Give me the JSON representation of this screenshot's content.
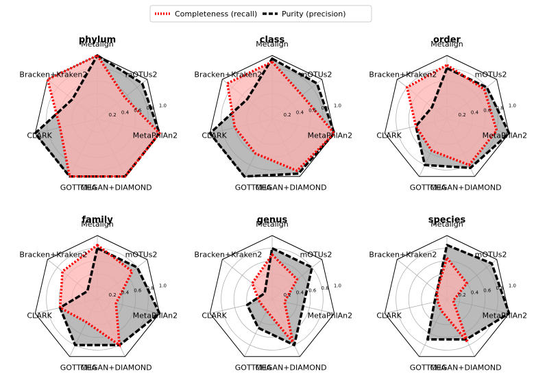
{
  "chart_data": {
    "type": "radar",
    "axes": [
      "Metalign",
      "mOTUs2",
      "MetaPhlAn2",
      "MEGAN+DIAMOND",
      "GOTTCHA",
      "CLARK",
      "Bracken+Kraken2"
    ],
    "radial_ticks": [
      "0.2",
      "0.4",
      "0.6",
      "0.8",
      "1.0"
    ],
    "rlim": [
      0,
      1.0
    ],
    "grid": true,
    "legend": {
      "placement": "top-center",
      "entries": [
        "Completeness (recall)",
        "Purity (precision)"
      ]
    },
    "colors": {
      "completeness": "#ff0000",
      "completeness_fill": "#ffb0b0",
      "purity": "#000000",
      "purity_fill": "#999999"
    },
    "subplots": [
      {
        "title": "phylum",
        "series": [
          {
            "name": "Completeness (recall)",
            "values": [
              1.0,
              0.55,
              1.0,
              1.0,
              1.0,
              0.6,
              1.0
            ]
          },
          {
            "name": "Purity (precision)",
            "values": [
              1.0,
              0.9,
              1.0,
              1.0,
              1.0,
              1.0,
              0.5
            ]
          }
        ]
      },
      {
        "title": "class",
        "series": [
          {
            "name": "Completeness (recall)",
            "values": [
              0.9,
              0.6,
              1.0,
              0.9,
              0.6,
              0.6,
              0.9
            ]
          },
          {
            "name": "Purity (precision)",
            "values": [
              0.95,
              0.9,
              1.0,
              0.95,
              1.0,
              1.0,
              0.5
            ]
          }
        ]
      },
      {
        "title": "order",
        "series": [
          {
            "name": "Completeness (recall)",
            "values": [
              0.85,
              0.75,
              0.8,
              0.8,
              0.55,
              0.5,
              0.8
            ]
          },
          {
            "name": "Purity (precision)",
            "values": [
              0.8,
              0.8,
              1.0,
              0.85,
              0.8,
              0.5,
              0.3
            ]
          }
        ]
      },
      {
        "title": "family",
        "series": [
          {
            "name": "Completeness (recall)",
            "values": [
              0.85,
              0.7,
              0.3,
              0.8,
              0.4,
              0.6,
              0.7
            ]
          },
          {
            "name": "Purity (precision)",
            "values": [
              0.8,
              0.8,
              1.0,
              0.8,
              0.8,
              0.6,
              0.2
            ]
          }
        ]
      },
      {
        "title": "genus",
        "series": [
          {
            "name": "Completeness (recall)",
            "values": [
              0.7,
              0.5,
              0.2,
              0.75,
              0.2,
              0.2,
              0.4
            ]
          },
          {
            "name": "Purity (precision)",
            "values": [
              0.8,
              0.8,
              0.5,
              0.8,
              0.5,
              0.4,
              0.15
            ]
          }
        ]
      },
      {
        "title": "species",
        "series": [
          {
            "name": "Completeness (recall)",
            "values": [
              0.65,
              0.4,
              0.1,
              0.75,
              0.2,
              0.15,
              0.2
            ]
          },
          {
            "name": "Purity (precision)",
            "values": [
              0.85,
              0.9,
              1.0,
              0.7,
              0.7,
              0.2,
              0.2
            ]
          }
        ]
      }
    ]
  }
}
